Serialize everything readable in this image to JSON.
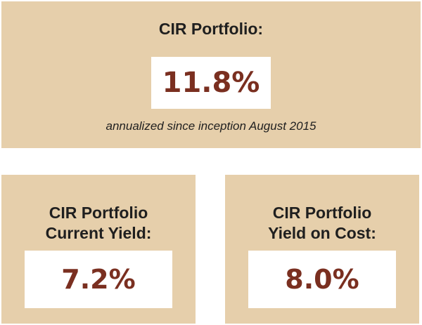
{
  "top_card": {
    "title": "CIR Portfolio:",
    "value": "11.8%",
    "subtitle": "annualized since inception August 2015"
  },
  "left_card": {
    "title_line1": "CIR Portfolio",
    "title_line2": "Current Yield:",
    "value": "7.2%"
  },
  "right_card": {
    "title_line1": "CIR Portfolio",
    "title_line2": "Yield on Cost:",
    "value": "8.0%"
  },
  "colors": {
    "card_background": "#e6cfab",
    "value_text": "#7a2f20",
    "title_text": "#1f1f1f",
    "value_box": "#ffffff"
  }
}
